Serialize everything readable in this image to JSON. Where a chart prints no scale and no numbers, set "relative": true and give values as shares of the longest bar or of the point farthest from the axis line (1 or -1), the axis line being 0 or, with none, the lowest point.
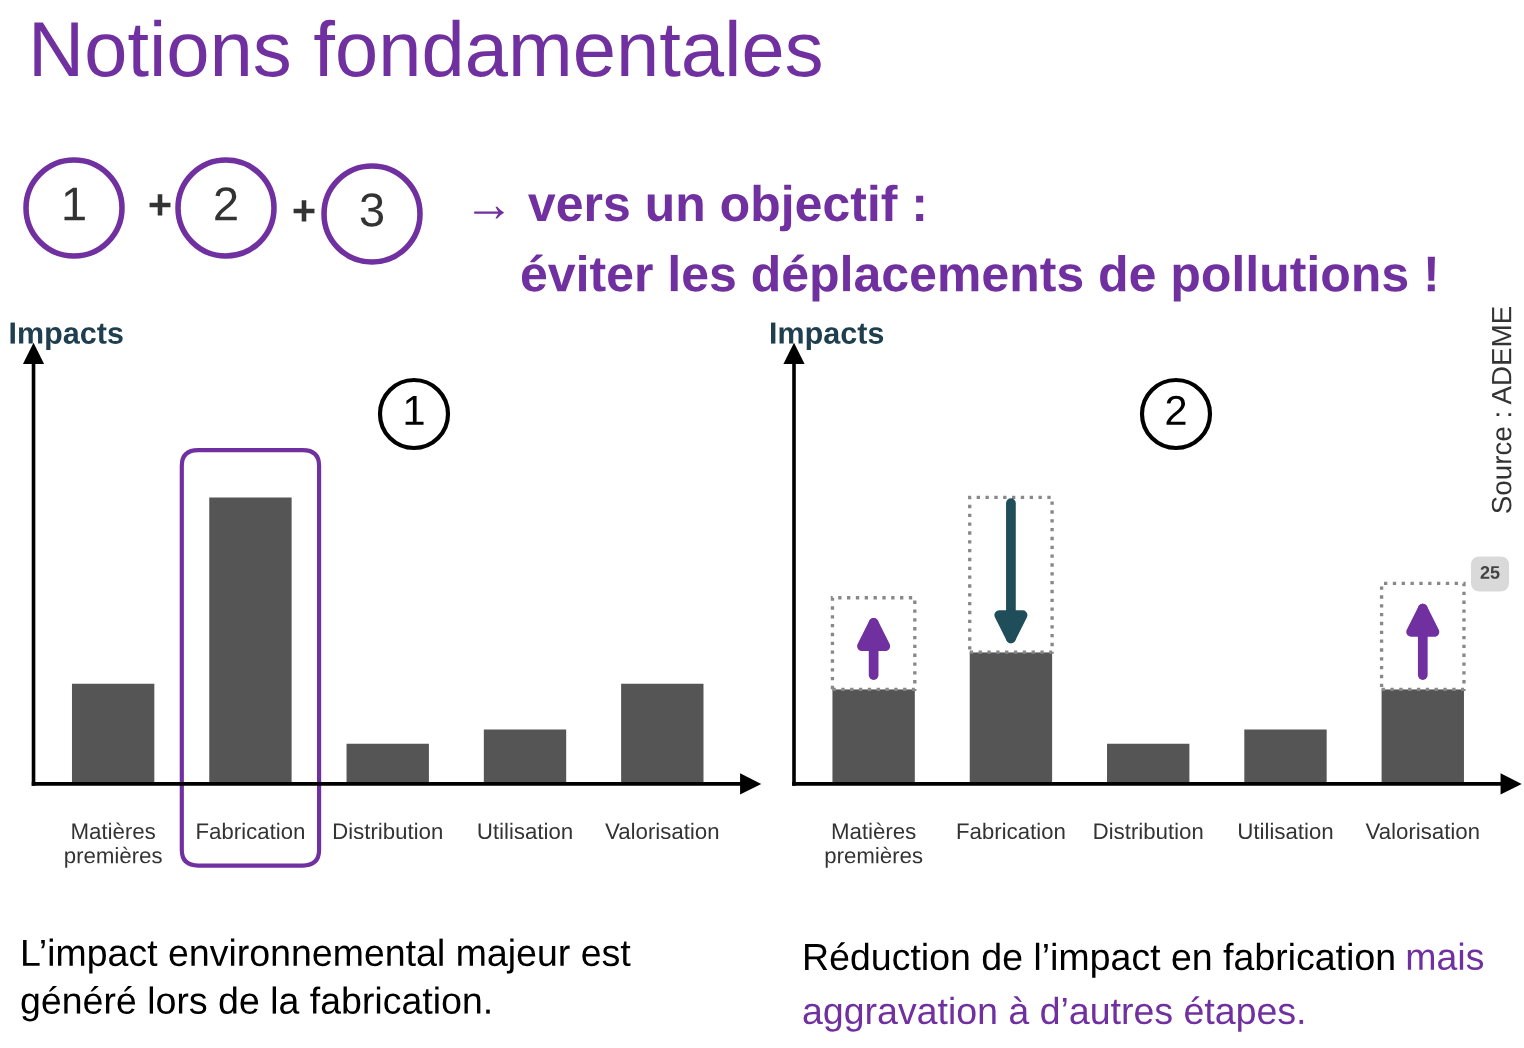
{
  "chart_data": [
    {
      "type": "bar",
      "title": "Notions fondamentales",
      "ylabel": "Impacts",
      "relative": true,
      "grid": false,
      "categories": [
        "Matières\npremières",
        "Fabrication",
        "Distribution",
        "Utilisation",
        "Valorisation"
      ],
      "values": [
        0.35,
        1,
        0.14,
        0.19,
        0.35
      ],
      "color": "#555555",
      "annotations": [
        "1",
        "+",
        "2",
        "+",
        "3",
        "→ vers un objectif :",
        "éviter les déplacements de pollutions !",
        "1",
        "L’impact environnemental majeur est\ngénéré lors de la fabrication."
      ]
    },
    {
      "type": "bar",
      "ylabel": "Impacts",
      "relative": true,
      "stacked": true,
      "grid": false,
      "categories": [
        "Matières\npremières",
        "Fabrication",
        "Distribution",
        "Utilisation",
        "Valorisation"
      ],
      "series": [
        {
          "color": "#555555",
          "values": [
            0.33,
            0.46,
            0.14,
            0.19,
            0.33
          ]
        },
        {
          "color": "#ffffff",
          "values": [
            0.32,
            0.54,
            null,
            null,
            0.37
          ]
        }
      ],
      "annotations": [
        "2",
        "Réduction de l’impact en fabrication",
        "mais",
        "aggravation à d’autres étapes.",
        "Source : ADEME",
        "25"
      ]
    }
  ]
}
